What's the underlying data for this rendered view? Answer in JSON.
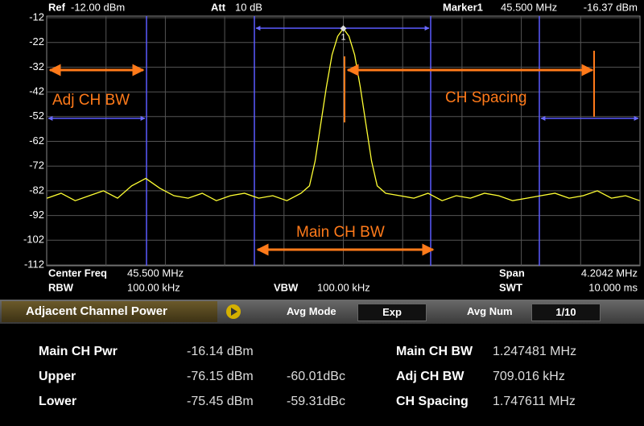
{
  "header": {
    "ref_label": "Ref",
    "ref_value": "-12.00 dBm",
    "att_label": "Att",
    "att_value": "10 dB",
    "marker_label": "Marker1",
    "marker_freq": "45.500 MHz",
    "marker_level": "-16.37 dBm"
  },
  "chart_data": {
    "type": "line",
    "x": [
      43.4,
      43.5,
      43.6,
      43.7,
      43.8,
      43.9,
      44.0,
      44.1,
      44.2,
      44.3,
      44.4,
      44.5,
      44.6,
      44.7,
      44.8,
      44.9,
      45.0,
      45.1,
      45.2,
      45.26,
      45.3,
      45.34,
      45.38,
      45.42,
      45.46,
      45.5,
      45.54,
      45.58,
      45.62,
      45.66,
      45.7,
      45.74,
      45.8,
      45.9,
      46.0,
      46.1,
      46.2,
      46.3,
      46.4,
      46.5,
      46.6,
      46.7,
      46.8,
      46.9,
      47.0,
      47.1,
      47.2,
      47.3,
      47.4,
      47.5,
      47.6
    ],
    "series": [
      {
        "color": "#ffff33",
        "values": [
          -85,
          -83,
          -86,
          -84,
          -82,
          -85,
          -80,
          -77,
          -81,
          -84,
          -85,
          -83,
          -86,
          -84,
          -83,
          -85,
          -84,
          -86,
          -83,
          -80,
          -70,
          -55,
          -40,
          -27,
          -19.5,
          -16.37,
          -19.5,
          -27,
          -40,
          -55,
          -70,
          -80,
          -83,
          -84,
          -85,
          -83,
          -86,
          -84,
          -85,
          -83,
          -84,
          -86,
          -85,
          -84,
          -83,
          -85,
          -84,
          -82,
          -85,
          -84,
          -86
        ]
      }
    ],
    "xlim": [
      43.3979,
      47.6021
    ],
    "ylim": [
      -112,
      -12
    ],
    "yticks": [
      -12,
      -22,
      -32,
      -42,
      -52,
      -62,
      -72,
      -82,
      -92,
      -102,
      -112
    ],
    "grid": true,
    "marker_label": "1",
    "annotations": [
      "Adj CH BW",
      "CH Spacing",
      "Main CH BW"
    ]
  },
  "footer": {
    "center_label": "Center Freq",
    "center_value": "45.500 MHz",
    "span_label": "Span",
    "span_value": "4.2042 MHz",
    "rbw_label": "RBW",
    "rbw_value": "100.00 kHz",
    "vbw_label": "VBW",
    "vbw_value": "100.00 kHz",
    "swt_label": "SWT",
    "swt_value": "10.000 ms"
  },
  "toolbar": {
    "mode": "Adjacent Channel Power",
    "avg_mode_label": "Avg Mode",
    "avg_mode_value": "Exp",
    "avg_num_label": "Avg Num",
    "avg_num_value": "1/10"
  },
  "results": {
    "rows": [
      [
        "Main CH Pwr",
        "-16.14 dBm",
        null,
        "Main CH BW",
        "1.247481 MHz"
      ],
      [
        "Upper",
        "-76.15 dBm",
        "-60.01dBc",
        "Adj CH BW",
        "709.016 kHz"
      ],
      [
        "Lower",
        "-75.45 dBm",
        "-59.31dBc",
        "CH Spacing",
        "1.747611 MHz"
      ]
    ]
  }
}
